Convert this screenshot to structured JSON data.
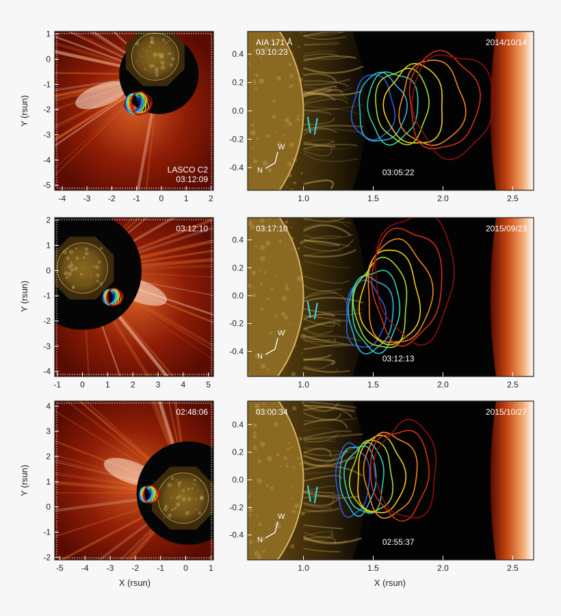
{
  "units": {
    "x": "X (rsun)",
    "y": "Y (rsun)"
  },
  "rows": [
    {
      "left": {
        "xlim": [
          -4.3,
          2.1
        ],
        "ylim": [
          -5.2,
          1.1
        ],
        "xticks": [
          "-4",
          "-3",
          "-2",
          "-1",
          "0",
          "1",
          "2"
        ],
        "yticks": [
          "1",
          "0",
          "-1",
          "-2",
          "-3",
          "-4",
          "-5"
        ],
        "label1": "LASCO C2",
        "label2": "03:12:09",
        "occulter_center": [
          -0.1,
          -0.6
        ],
        "occulter_r": 1.6,
        "disk_center": [
          -0.25,
          0.1
        ],
        "disk_r": 0.95,
        "contour_center": [
          -1.0,
          -1.75
        ],
        "contour_r": 0.4,
        "stream_angle": 200
      },
      "right": {
        "line1": "AIA 171 Å",
        "line2": "03:10:23",
        "date": "2014/10/14",
        "time": "03:05:22",
        "ylim": [
          -0.56,
          0.56
        ],
        "yticks": [
          "0.4",
          "0.2",
          "0.0",
          "-0.2",
          "-0.4"
        ],
        "cmap": "WN",
        "contours": [
          {
            "cx": 1.5,
            "cy": 0.02,
            "rx": 0.15,
            "ry": 0.23
          },
          {
            "cx": 1.56,
            "cy": 0.02,
            "rx": 0.17,
            "ry": 0.24
          },
          {
            "cx": 1.64,
            "cy": 0.03,
            "rx": 0.18,
            "ry": 0.25
          },
          {
            "cx": 1.71,
            "cy": 0.04,
            "rx": 0.19,
            "ry": 0.26
          },
          {
            "cx": 1.8,
            "cy": 0.04,
            "rx": 0.21,
            "ry": 0.28
          },
          {
            "cx": 1.92,
            "cy": 0.05,
            "rx": 0.23,
            "ry": 0.3
          },
          {
            "cx": 2.0,
            "cy": 0.07,
            "rx": 0.25,
            "ry": 0.34
          },
          {
            "cx": 2.07,
            "cy": 0.05,
            "rx": 0.29,
            "ry": 0.36
          }
        ]
      }
    },
    {
      "left": {
        "xlim": [
          -1.1,
          5.2
        ],
        "ylim": [
          -4.2,
          2.1
        ],
        "xticks": [
          "-1",
          "0",
          "1",
          "2",
          "3",
          "4",
          "5"
        ],
        "yticks": [
          "2",
          "1",
          "0",
          "-1",
          "-2",
          "-3",
          "-4"
        ],
        "label1": "",
        "label2": "03:12:10",
        "occulter_center": [
          0.0,
          0.0
        ],
        "occulter_r": 2.35,
        "disk_center": [
          0.0,
          0.1
        ],
        "disk_r": 1.0,
        "contour_center": [
          1.15,
          -1.05
        ],
        "contour_r": 0.3,
        "stream_angle": 340
      },
      "right": {
        "line1": "03:17:10",
        "line2": "",
        "date": "2015/09/23",
        "time": "03:12:13",
        "ylim": [
          -0.58,
          0.56
        ],
        "yticks": [
          "0.4",
          "0.2",
          "0.0",
          "-0.2",
          "-0.4"
        ],
        "cmap": "NN",
        "contours": [
          {
            "cx": 1.44,
            "cy": -0.14,
            "rx": 0.14,
            "ry": 0.24
          },
          {
            "cx": 1.48,
            "cy": -0.13,
            "rx": 0.16,
            "ry": 0.27
          },
          {
            "cx": 1.52,
            "cy": -0.1,
            "rx": 0.17,
            "ry": 0.29
          },
          {
            "cx": 1.56,
            "cy": -0.06,
            "rx": 0.19,
            "ry": 0.32
          },
          {
            "cx": 1.62,
            "cy": -0.02,
            "rx": 0.21,
            "ry": 0.34
          },
          {
            "cx": 1.68,
            "cy": 0.02,
            "rx": 0.23,
            "ry": 0.37
          },
          {
            "cx": 1.74,
            "cy": 0.08,
            "rx": 0.25,
            "ry": 0.41
          },
          {
            "cx": 1.8,
            "cy": 0.14,
            "rx": 0.28,
            "ry": 0.46
          }
        ]
      }
    },
    {
      "left": {
        "xlim": [
          -5.2,
          1.1
        ],
        "ylim": [
          -2.1,
          4.2
        ],
        "xticks": [
          "-5",
          "-4",
          "-3",
          "-2",
          "-1",
          "0",
          "1"
        ],
        "yticks": [
          "4",
          "3",
          "2",
          "1",
          "0",
          "-1",
          "-2"
        ],
        "label1": "",
        "label2": "02:48:06",
        "occulter_center": [
          0.1,
          0.55
        ],
        "occulter_r": 2.05,
        "disk_center": [
          -0.1,
          0.35
        ],
        "disk_r": 1.0,
        "contour_center": [
          -1.5,
          0.5
        ],
        "contour_r": 0.3,
        "stream_angle": 160
      },
      "right": {
        "line1": "03:00:34",
        "line2": "",
        "date": "2015/10/27",
        "time": "02:55:37",
        "ylim": [
          -0.58,
          0.57
        ],
        "yticks": [
          "0.4",
          "0.2",
          "0.0",
          "-0.2",
          "-0.4"
        ],
        "cmap": "ZN",
        "contours": [
          {
            "cx": 1.35,
            "cy": 0.0,
            "rx": 0.12,
            "ry": 0.26
          },
          {
            "cx": 1.39,
            "cy": 0.01,
            "rx": 0.13,
            "ry": 0.25
          },
          {
            "cx": 1.44,
            "cy": 0.01,
            "rx": 0.14,
            "ry": 0.25
          },
          {
            "cx": 1.49,
            "cy": 0.02,
            "rx": 0.15,
            "ry": 0.26
          },
          {
            "cx": 1.55,
            "cy": 0.03,
            "rx": 0.17,
            "ry": 0.28
          },
          {
            "cx": 1.62,
            "cy": 0.04,
            "rx": 0.19,
            "ry": 0.3
          },
          {
            "cx": 1.69,
            "cy": 0.05,
            "rx": 0.21,
            "ry": 0.32
          },
          {
            "cx": 1.74,
            "cy": 0.07,
            "rx": 0.22,
            "ry": 0.35
          }
        ]
      }
    }
  ],
  "right_xlim": [
    0.6,
    2.65
  ],
  "right_xticks": [
    "1.0",
    "1.5",
    "2.0",
    "2.5"
  ],
  "contour_colors": [
    "#1a1a8c",
    "#2c5fe0",
    "#2fb8e8",
    "#2ed6b0",
    "#a8e030",
    "#f4d21c",
    "#f28a1e",
    "#d63018",
    "#8c1010"
  ]
}
